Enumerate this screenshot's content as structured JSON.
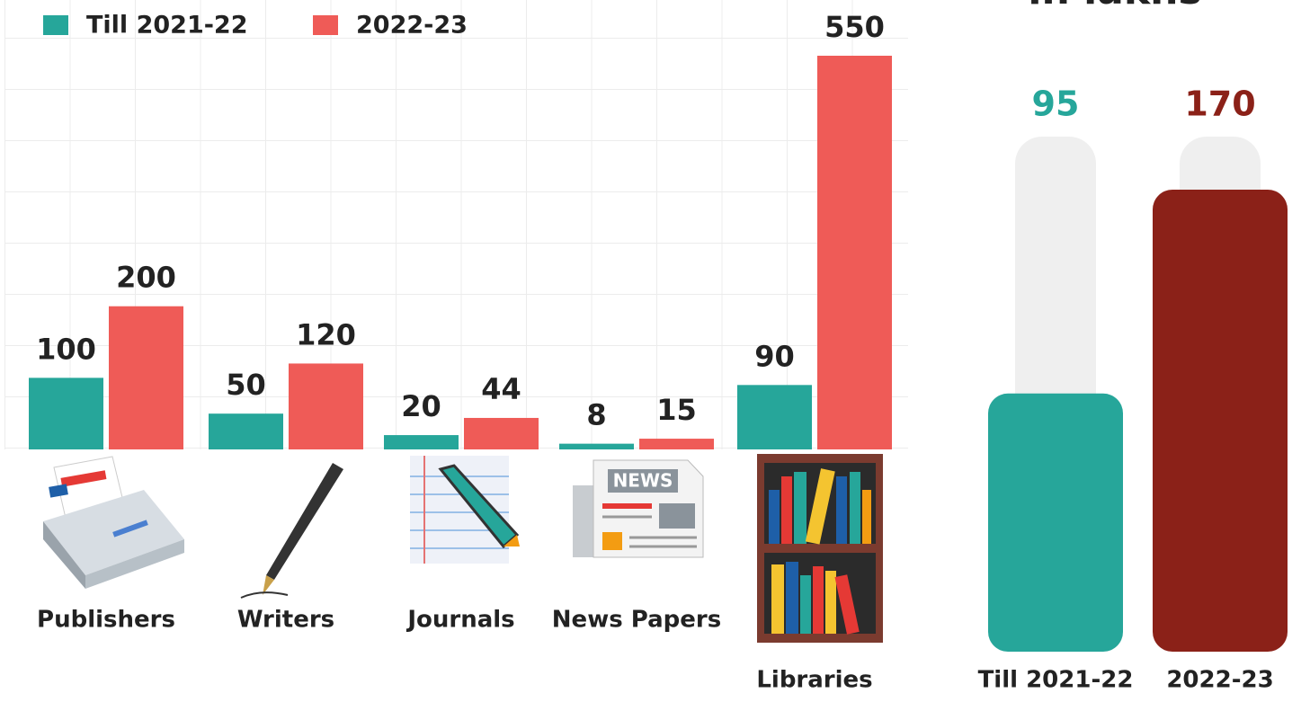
{
  "chart_data": [
    {
      "type": "bar",
      "categories": [
        "Publishers",
        "Writers",
        "Journals",
        "News Papers",
        "Libraries"
      ],
      "series": [
        {
          "name": "Till 2021-22",
          "color": "#26a69a",
          "values": [
            100,
            50,
            20,
            8,
            90
          ]
        },
        {
          "name": "2022-23",
          "color": "#ef5b57",
          "values": [
            200,
            120,
            44,
            15,
            550
          ]
        }
      ]
    },
    {
      "type": "capsule",
      "title": "in lakhs",
      "categories": [
        "Till 2021-22",
        "2022-23"
      ],
      "values": [
        95,
        170
      ],
      "colors": [
        "#26a69a",
        "#8b2118"
      ]
    }
  ]
}
